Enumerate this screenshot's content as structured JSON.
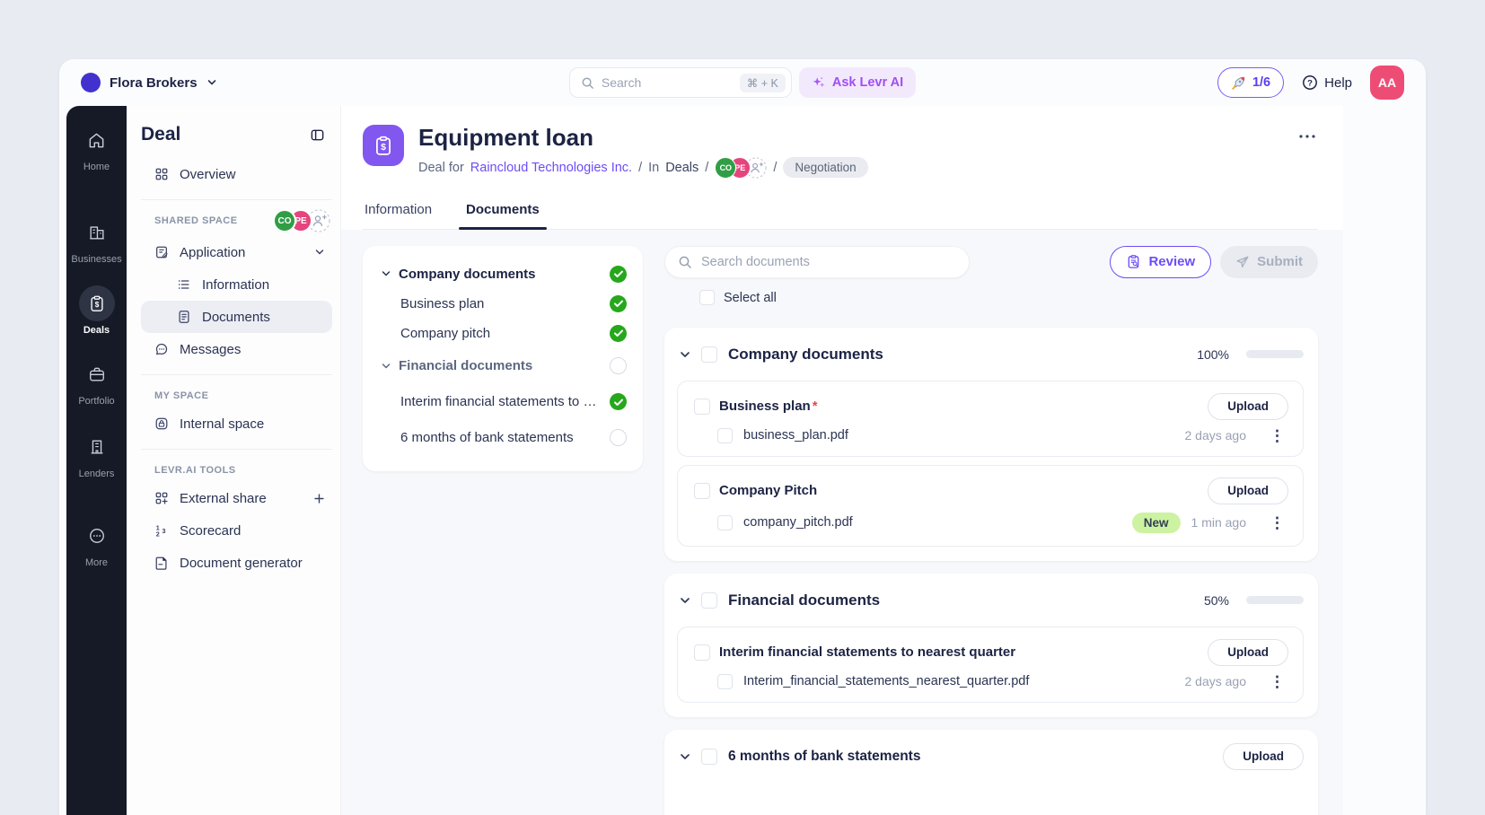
{
  "topbar": {
    "org_name": "Flora Brokers",
    "search_placeholder": "Search",
    "search_shortcut": "⌘ + K",
    "ask_ai_label": "Ask Levr AI",
    "usage_label": "1/6",
    "help_label": "Help",
    "avatar_initials": "AA"
  },
  "nav_rail": {
    "items": [
      {
        "label": "Home",
        "active": false
      },
      {
        "label": "Businesses",
        "active": false
      },
      {
        "label": "Deals",
        "active": true
      },
      {
        "label": "Portfolio",
        "active": false
      },
      {
        "label": "Lenders",
        "active": false
      },
      {
        "label": "More",
        "active": false
      }
    ]
  },
  "sidebar": {
    "title": "Deal",
    "overview_label": "Overview",
    "shared_space_label": "SHARED SPACE",
    "shared_avatars": [
      "CO",
      "PE"
    ],
    "application_label": "Application",
    "information_label": "Information",
    "documents_label": "Documents",
    "messages_label": "Messages",
    "my_space_label": "MY SPACE",
    "internal_space_label": "Internal space",
    "tools_label": "LEVR.AI TOOLS",
    "external_share_label": "External share",
    "scorecard_label": "Scorecard",
    "document_generator_label": "Document generator"
  },
  "deal": {
    "title": "Equipment loan",
    "subtitle_prefix": "Deal for",
    "company_link": "Raincloud Technologies Inc.",
    "sep": "/",
    "in_label": "In",
    "deals_link": "Deals",
    "avatars": [
      "CO",
      "PE"
    ],
    "status": "Negotiation",
    "tabs": [
      {
        "label": "Information",
        "active": false
      },
      {
        "label": "Documents",
        "active": true
      }
    ]
  },
  "checklist": {
    "items": [
      {
        "label": "Company documents",
        "type": "section",
        "status": "done"
      },
      {
        "label": "Business plan",
        "type": "doc",
        "status": "done"
      },
      {
        "label": "Company pitch",
        "type": "doc",
        "status": "done"
      },
      {
        "label": "Financial documents",
        "type": "section",
        "status": "pending"
      },
      {
        "label": "Interim financial statements to nearest quarter",
        "type": "doc",
        "status": "done"
      },
      {
        "label": "6 months of bank statements",
        "type": "doc",
        "status": "pending"
      }
    ]
  },
  "docs": {
    "search_placeholder": "Search documents",
    "review_label": "Review",
    "submit_label": "Submit",
    "select_all_label": "Select all",
    "upload_label": "Upload",
    "required_marker": "*",
    "sections": [
      {
        "name": "Company documents",
        "progress_label": "100%",
        "progress_pct": 100,
        "requests": [
          {
            "title": "Business plan",
            "required": true,
            "files": [
              {
                "name": "business_plan.pdf",
                "time": "2 days ago",
                "badge": ""
              }
            ]
          },
          {
            "title": "Company Pitch",
            "required": false,
            "files": [
              {
                "name": "company_pitch.pdf",
                "time": "1 min ago",
                "badge": "New"
              }
            ]
          }
        ]
      },
      {
        "name": "Financial documents",
        "progress_label": "50%",
        "progress_pct": 50,
        "requests": [
          {
            "title": "Interim financial statements to nearest quarter",
            "required": false,
            "files": [
              {
                "name": "Interim_financial_statements_nearest_quarter.pdf",
                "time": "2 days ago",
                "badge": ""
              }
            ]
          }
        ]
      }
    ],
    "standalone_request": {
      "title": "6 months of bank statements"
    }
  },
  "colors": {
    "accent_purple": "#6d4df6",
    "ask_ai_purple": "#a14ef3",
    "success_green": "#27a71c",
    "progress_green": "#3fc20a",
    "badge_new_bg": "#cdf3a2",
    "avatar_co_green": "#2f9e44",
    "avatar_pe_pink": "#e5447c",
    "avatar_me_pink": "#ed4d75",
    "rail_bg": "#161a27",
    "deal_icon_purple": "#8157f0",
    "required_red": "#e5484d"
  }
}
